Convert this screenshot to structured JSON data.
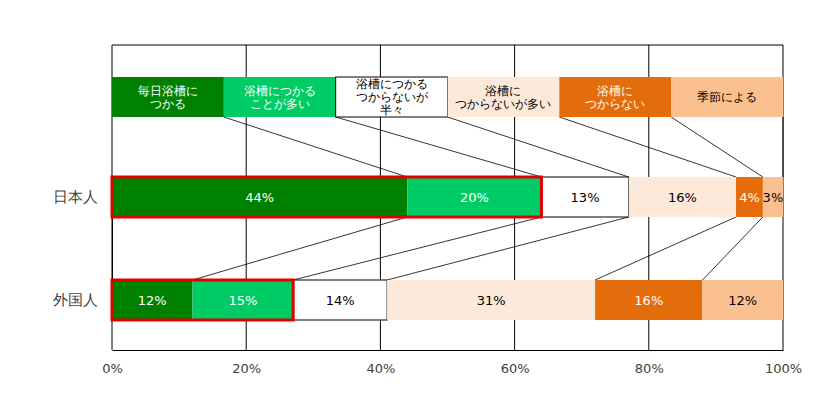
{
  "chart_data": {
    "type": "bar",
    "orientation": "horizontal",
    "stacked": true,
    "data_labels": true,
    "grid": true,
    "categories": [
      "日本人",
      "外国人"
    ],
    "xlim": [
      0,
      100
    ],
    "xticks": [
      {
        "value": 0,
        "label": "0%"
      },
      {
        "value": 20,
        "label": "20%"
      },
      {
        "value": 40,
        "label": "40%"
      },
      {
        "value": 60,
        "label": "60%"
      },
      {
        "value": 80,
        "label": "80%"
      },
      {
        "value": 100,
        "label": "100%"
      }
    ],
    "series": [
      {
        "name": "毎日浴槽に\nつかる",
        "color": "#008000",
        "values": [
          44,
          12
        ],
        "value_labels": [
          "44%",
          "12%"
        ]
      },
      {
        "name": "浴槽につかる\nことが多い",
        "color": "#00cc66",
        "values": [
          20,
          15
        ],
        "value_labels": [
          "20%",
          "15%"
        ]
      },
      {
        "name": "浴槽につかる\nつからないが\n半々",
        "color": "#ffffff",
        "values": [
          13,
          14
        ],
        "value_labels": [
          "13%",
          "14%"
        ]
      },
      {
        "name": "浴槽に\nつからないが多い",
        "color": "#fde9d9",
        "values": [
          16,
          31
        ],
        "value_labels": [
          "16%",
          "31%"
        ]
      },
      {
        "name": "浴槽に\nつからない",
        "color": "#e46c0a",
        "values": [
          4,
          16
        ],
        "value_labels": [
          "4%",
          "16%"
        ]
      },
      {
        "name": "季節による",
        "color": "#fac090",
        "values": [
          3,
          12
        ],
        "value_labels": [
          "3%",
          "12%"
        ]
      }
    ]
  }
}
